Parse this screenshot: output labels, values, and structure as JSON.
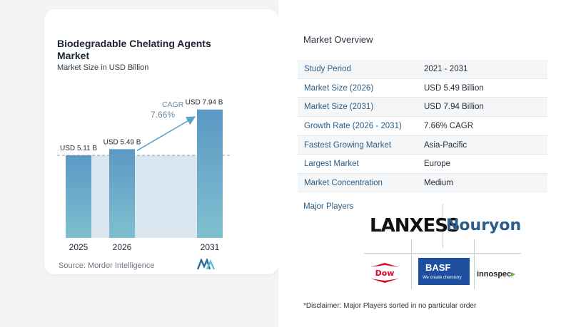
{
  "chart": {
    "title": "Biodegradable Chelating Agents Market",
    "subtitle": "Market Size in USD Billion",
    "source": "Source:  Mordor Intelligence",
    "cagr_label": "CAGR",
    "cagr_value": "7.66%"
  },
  "chart_data": {
    "type": "bar",
    "title": "Biodegradable Chelating Agents Market",
    "subtitle": "Market Size in USD Billion",
    "categories": [
      "2025",
      "2026",
      "2031"
    ],
    "values": [
      5.11,
      5.49,
      7.94
    ],
    "data_labels": [
      "USD 5.11 B",
      "USD 5.49 B",
      "USD 7.94 B"
    ],
    "ylim": [
      0,
      8.5
    ],
    "colors": {
      "bar": "#5b98c4",
      "bar_light": "#7fc0cf",
      "dashed_line": "#8d9aa8",
      "shaded": "#dbe7f0",
      "arrow": "#5aa3c8"
    }
  },
  "overview": {
    "title": "Market Overview",
    "rows": [
      {
        "label": "Study Period",
        "value": "2021 - 2031"
      },
      {
        "label": "Market Size (2026)",
        "value": "USD 5.49 Billion"
      },
      {
        "label": "Market Size (2031)",
        "value": "USD 7.94 Billion"
      },
      {
        "label": "Growth Rate (2026 - 2031)",
        "value": "7.66% CAGR"
      },
      {
        "label": "Fastest Growing Market",
        "value": "Asia-Pacific"
      },
      {
        "label": "Largest Market",
        "value": "Europe"
      },
      {
        "label": "Market Concentration",
        "value": "Medium"
      }
    ]
  },
  "players": {
    "title": "Major Players",
    "lanxess": "LANXESS",
    "nouryon": "Nouryon",
    "dow": "Dow",
    "basf": "BASF",
    "basf_tagline": "We create chemistry",
    "innospec": "innospec"
  },
  "disclaimer": "*Disclaimer: Major Players sorted in no particular order"
}
